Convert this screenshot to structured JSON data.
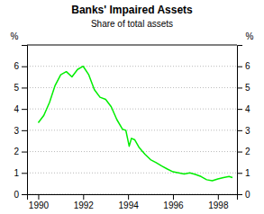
{
  "chart_data": {
    "type": "line",
    "title": "Banks' Impaired Assets",
    "subtitle": "Share of total assets",
    "ylabel": "%",
    "y2label": "%",
    "color": "#00ee00",
    "grid": true,
    "xlim": [
      1989.5,
      1998.85
    ],
    "xticks": [
      1990,
      1992,
      1994,
      1996,
      1998
    ],
    "ylim": [
      0,
      7
    ],
    "yticks": [
      0,
      1,
      2,
      3,
      4,
      5,
      6
    ],
    "y2lim": [
      0,
      7
    ],
    "y2ticks": [
      0,
      1,
      2,
      3,
      4,
      5,
      6
    ],
    "x": [
      1990.0,
      1990.25,
      1990.5,
      1990.75,
      1991.0,
      1991.25,
      1991.5,
      1991.75,
      1992.0,
      1992.25,
      1992.5,
      1992.75,
      1993.0,
      1993.25,
      1993.5,
      1993.75,
      1993.9,
      1994.05,
      1994.15,
      1994.3,
      1994.5,
      1994.75,
      1995.0,
      1995.25,
      1995.5,
      1995.75,
      1996.0,
      1996.25,
      1996.5,
      1996.75,
      1997.0,
      1997.25,
      1997.5,
      1997.75,
      1998.0,
      1998.25,
      1998.5,
      1998.65
    ],
    "values": [
      3.35,
      3.7,
      4.3,
      5.1,
      5.6,
      5.75,
      5.5,
      5.85,
      6.0,
      5.6,
      4.9,
      4.55,
      4.45,
      4.1,
      3.5,
      3.05,
      3.0,
      2.25,
      2.62,
      2.55,
      2.18,
      1.88,
      1.62,
      1.48,
      1.32,
      1.18,
      1.05,
      1.0,
      0.95,
      1.0,
      0.93,
      0.83,
      0.68,
      0.63,
      0.72,
      0.78,
      0.83,
      0.78
    ]
  }
}
